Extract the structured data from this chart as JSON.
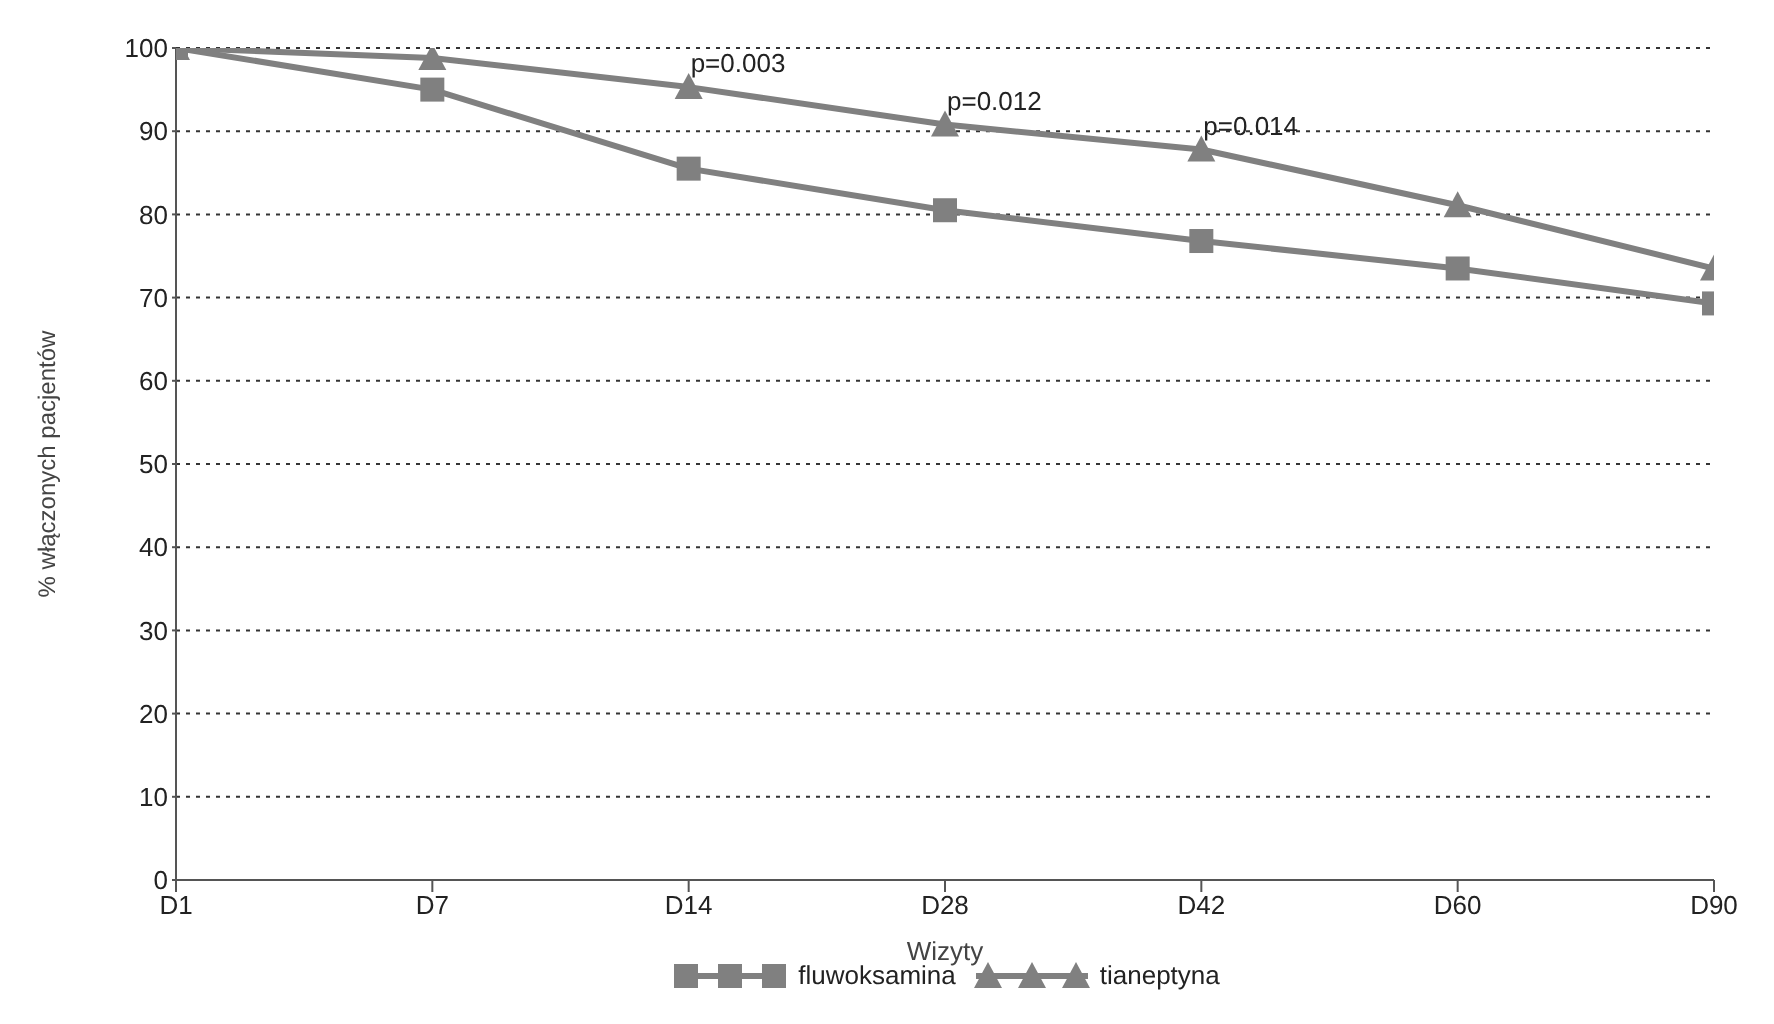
{
  "chart_data": {
    "type": "line",
    "xlabel": "Wizyty",
    "ylabel": "% włączonych pacjentów",
    "categories": [
      "D1",
      "D7",
      "D14",
      "D28",
      "D42",
      "D60",
      "D90"
    ],
    "ylim": [
      0,
      100
    ],
    "yticks": [
      0,
      10,
      20,
      30,
      40,
      50,
      60,
      70,
      80,
      90,
      100
    ],
    "grid": "y",
    "legend": "bottom",
    "series": [
      {
        "name": "fluwoksamina",
        "color": "#808080",
        "marker": "square",
        "values": [
          100,
          95,
          85.5,
          80.5,
          76.8,
          73.5,
          69.3
        ]
      },
      {
        "name": "tianeptyna",
        "color": "#808080",
        "marker": "triangle",
        "values": [
          100,
          98.8,
          95.3,
          90.8,
          87.8,
          81.1,
          73.5
        ]
      }
    ],
    "annotations": [
      {
        "text": "p=0.003",
        "x": "D14",
        "y": 95.3
      },
      {
        "text": "p=0.012",
        "x": "D28",
        "y": 90.8
      },
      {
        "text": "p=0.014",
        "x": "D42",
        "y": 87.8
      }
    ]
  }
}
